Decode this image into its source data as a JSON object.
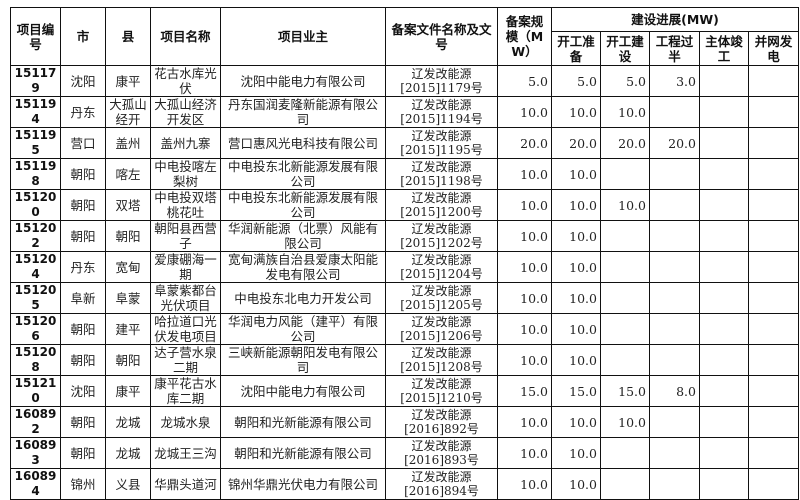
{
  "headers": {
    "id": "项目编号",
    "city": "市",
    "county": "县",
    "name": "项目名称",
    "owner": "项目业主",
    "doc": "备案文件名称及文号",
    "scale": "备案规模（MW）",
    "progress": "建设进展(MW)",
    "stages": [
      "开工准备",
      "开工建设",
      "工程过半",
      "主体竣工",
      "并网发电"
    ]
  },
  "rows": [
    {
      "id": "151179",
      "city": "沈阳",
      "county": "康平",
      "name": "花古水库光伏",
      "owner": "沈阳中能电力有限公司",
      "doc_name": "辽发改能源",
      "doc_no": "[2015]1179号",
      "scale": "5.0",
      "s": [
        "5.0",
        "5.0",
        "3.0",
        "",
        ""
      ]
    },
    {
      "id": "151194",
      "city": "丹东",
      "county": "大孤山经开",
      "name": "大孤山经济开发区",
      "owner": "丹东国润麦隆新能源有限公司",
      "doc_name": "辽发改能源",
      "doc_no": "[2015]1194号",
      "scale": "10.0",
      "s": [
        "10.0",
        "10.0",
        "",
        "",
        ""
      ]
    },
    {
      "id": "151195",
      "city": "营口",
      "county": "盖州",
      "name": "盖州九寨",
      "owner": "营口惠风光电科技有限公司",
      "doc_name": "辽发改能源",
      "doc_no": "[2015]1195号",
      "scale": "20.0",
      "s": [
        "20.0",
        "20.0",
        "20.0",
        "",
        ""
      ]
    },
    {
      "id": "151198",
      "city": "朝阳",
      "county": "喀左",
      "name": "中电投喀左梨树",
      "owner": "中电投东北新能源发展有限公司",
      "doc_name": "辽发改能源",
      "doc_no": "[2015]1198号",
      "scale": "10.0",
      "s": [
        "10.0",
        "",
        "",
        "",
        ""
      ]
    },
    {
      "id": "151200",
      "city": "朝阳",
      "county": "双塔",
      "name": "中电投双塔桃花吐",
      "owner": "中电投东北新能源发展有限公司",
      "doc_name": "辽发改能源",
      "doc_no": "[2015]1200号",
      "scale": "10.0",
      "s": [
        "10.0",
        "10.0",
        "",
        "",
        ""
      ]
    },
    {
      "id": "151202",
      "city": "朝阳",
      "county": "朝阳",
      "name": "朝阳县西营子",
      "owner": "华润新能源（北票）风能有限公司",
      "doc_name": "辽发改能源",
      "doc_no": "[2015]1202号",
      "scale": "10.0",
      "s": [
        "10.0",
        "",
        "",
        "",
        ""
      ]
    },
    {
      "id": "151204",
      "city": "丹东",
      "county": "宽甸",
      "name": "爱康硼海一期",
      "owner": "宽甸满族自治县爱康太阳能发电有限公司",
      "doc_name": "辽发改能源",
      "doc_no": "[2015]1204号",
      "scale": "10.0",
      "s": [
        "10.0",
        "",
        "",
        "",
        ""
      ]
    },
    {
      "id": "151205",
      "city": "阜新",
      "county": "阜蒙",
      "name": "阜蒙紫都台光伏项目",
      "owner": "中电投东北电力开发公司",
      "doc_name": "辽发改能源",
      "doc_no": "[2015]1205号",
      "scale": "10.0",
      "s": [
        "10.0",
        "",
        "",
        "",
        ""
      ]
    },
    {
      "id": "151206",
      "city": "朝阳",
      "county": "建平",
      "name": "哈拉道口光伏发电项目",
      "owner": "华润电力风能（建平）有限公司",
      "doc_name": "辽发改能源",
      "doc_no": "[2015]1206号",
      "scale": "10.0",
      "s": [
        "10.0",
        "",
        "",
        "",
        ""
      ]
    },
    {
      "id": "151208",
      "city": "朝阳",
      "county": "朝阳",
      "name": "达子营水泉二期",
      "owner": "三峡新能源朝阳发电有限公司",
      "doc_name": "辽发改能源",
      "doc_no": "[2015]1208号",
      "scale": "10.0",
      "s": [
        "10.0",
        "",
        "",
        "",
        ""
      ]
    },
    {
      "id": "151210",
      "city": "沈阳",
      "county": "康平",
      "name": "康平花古水库二期",
      "owner": "沈阳中能电力有限公司",
      "doc_name": "辽发改能源",
      "doc_no": "[2015]1210号",
      "scale": "15.0",
      "s": [
        "15.0",
        "15.0",
        "8.0",
        "",
        ""
      ]
    },
    {
      "id": "160892",
      "city": "朝阳",
      "county": "龙城",
      "name": "龙城水泉",
      "owner": "朝阳和光新能源有限公司",
      "doc_name": "辽发改能源",
      "doc_no": "[2016]892号",
      "scale": "10.0",
      "s": [
        "10.0",
        "10.0",
        "",
        "",
        ""
      ]
    },
    {
      "id": "160893",
      "city": "朝阳",
      "county": "龙城",
      "name": "龙城王三沟",
      "owner": "朝阳和光新能源有限公司",
      "doc_name": "辽发改能源",
      "doc_no": "[2016]893号",
      "scale": "10.0",
      "s": [
        "10.0",
        "",
        "",
        "",
        ""
      ]
    },
    {
      "id": "160894",
      "city": "锦州",
      "county": "义县",
      "name": "华鼎头道河",
      "owner": "锦州华鼎光伏电力有限公司",
      "doc_name": "辽发改能源",
      "doc_no": "[2016]894号",
      "scale": "10.0",
      "s": [
        "10.0",
        "",
        "",
        "",
        ""
      ]
    }
  ]
}
